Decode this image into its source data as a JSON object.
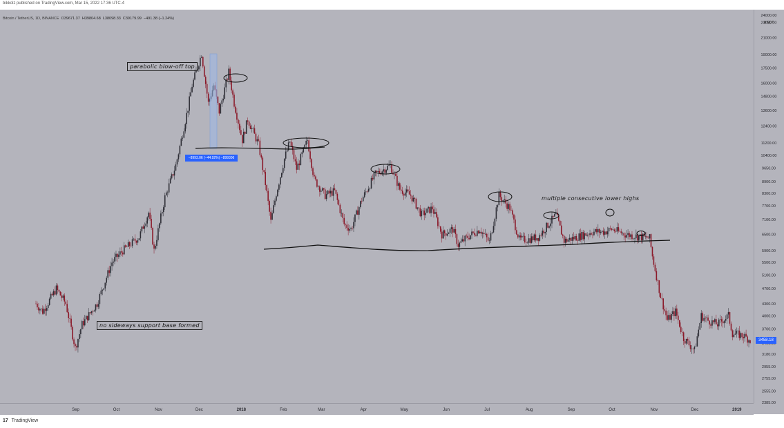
{
  "header": {
    "text": "bikkolz published on TradingView.com, Mar 15, 2022 17:36 UTC-4"
  },
  "symbol": {
    "name": "Bitcoin / TetherUS, 1D, BINANCE",
    "o": "O39671.37",
    "h": "H39804.68",
    "l": "L38098.33",
    "c": "C39179.99",
    "chg": "−491.38 (−1.24%)"
  },
  "annotations": {
    "parabolic": "parabolic blow-off top",
    "sideways": "no sideways support base formed",
    "lower_highs": "multiple consecutive lower highs",
    "measure": "−8993.06 (−44.92%) −899306"
  },
  "last_price": "3458.18",
  "footer": {
    "logo": "17",
    "brand": "TradingView"
  },
  "colors": {
    "background": "#b4b4bc",
    "up_candle": "#2e2e36",
    "down_candle": "#8b1a2a",
    "accent_blue": "#2962ff",
    "drawing": "#111111"
  },
  "chart_data": {
    "type": "line",
    "title": "Bitcoin / TetherUS, 1D, BINANCE",
    "y_scale": "log",
    "currency": "USDT",
    "y_tick_labels": [
      "24000.00",
      "23000.00",
      "21000.00",
      "19000.00",
      "17500.00",
      "16000.00",
      "14800.00",
      "13600.00",
      "12400.00",
      "11200.00",
      "10400.00",
      "9650.00",
      "8900.00",
      "8300.00",
      "7700.00",
      "7100.00",
      "6500.00",
      "5900.00",
      "5500.00",
      "5100.00",
      "4700.00",
      "4300.00",
      "4000.00",
      "3700.00",
      "3400.00",
      "3180.00",
      "2955.00",
      "2755.00",
      "2555.00",
      "2385.00"
    ],
    "x_tick_labels": [
      "Sep",
      "Oct",
      "Nov",
      "Dec",
      "2018",
      "Feb",
      "Mar",
      "Apr",
      "May",
      "Jun",
      "Jul",
      "Aug",
      "Sep",
      "Oct",
      "Nov",
      "Dec",
      "2019"
    ],
    "x_range": [
      "2017-08-17",
      "2019-01-25"
    ],
    "ylim": [
      2385,
      24000
    ],
    "series": [
      {
        "x": [
          "2017-08-17",
          "2017-08-22",
          "2017-09-01",
          "2017-09-08",
          "2017-09-15",
          "2017-09-20",
          "2017-10-01",
          "2017-10-12",
          "2017-10-20",
          "2017-11-01",
          "2017-11-08",
          "2017-11-12",
          "2017-11-20",
          "2017-11-28",
          "2017-12-07",
          "2017-12-10",
          "2017-12-17",
          "2017-12-22",
          "2017-12-26",
          "2017-12-30",
          "2018-01-06",
          "2018-01-10",
          "2018-01-16",
          "2018-01-20",
          "2018-01-28",
          "2018-02-02",
          "2018-02-06",
          "2018-02-10",
          "2018-02-16",
          "2018-02-20",
          "2018-02-25",
          "2018-03-05",
          "2018-03-10",
          "2018-03-18",
          "2018-03-25",
          "2018-04-01",
          "2018-04-06",
          "2018-04-14",
          "2018-04-24",
          "2018-05-05",
          "2018-05-12",
          "2018-05-20",
          "2018-05-28",
          "2018-06-05",
          "2018-06-12",
          "2018-06-20",
          "2018-06-24",
          "2018-07-01",
          "2018-07-10",
          "2018-07-17",
          "2018-07-24",
          "2018-08-01",
          "2018-08-08",
          "2018-08-14",
          "2018-08-22",
          "2018-09-04",
          "2018-09-10",
          "2018-09-20",
          "2018-10-01",
          "2018-10-10",
          "2018-10-15",
          "2018-10-25",
          "2018-11-05",
          "2018-11-12",
          "2018-11-14",
          "2018-11-20",
          "2018-11-25",
          "2018-12-01",
          "2018-12-07",
          "2018-12-15",
          "2018-12-20",
          "2018-12-24",
          "2019-01-01",
          "2019-01-09",
          "2019-01-12",
          "2019-01-20",
          "2019-01-25"
        ],
        "values": [
          4300,
          4100,
          4700,
          4300,
          3300,
          3800,
          4300,
          5500,
          5900,
          6400,
          7400,
          5900,
          8100,
          9800,
          13800,
          15800,
          19100,
          14200,
          15800,
          13500,
          17100,
          14200,
          11400,
          12900,
          11100,
          8800,
          7000,
          8300,
          10200,
          11300,
          9600,
          11400,
          9000,
          8200,
          8400,
          6900,
          6700,
          8000,
          9300,
          9800,
          8500,
          8200,
          7300,
          7600,
          6500,
          6700,
          6100,
          6400,
          6700,
          6200,
          8200,
          7600,
          6300,
          6300,
          6400,
          7300,
          6250,
          6400,
          6600,
          6600,
          6700,
          6500,
          6400,
          6350,
          5700,
          4500,
          3900,
          4100,
          3500,
          3250,
          4000,
          3900,
          3800,
          4000,
          3600,
          3550,
          3458
        ]
      }
    ]
  }
}
